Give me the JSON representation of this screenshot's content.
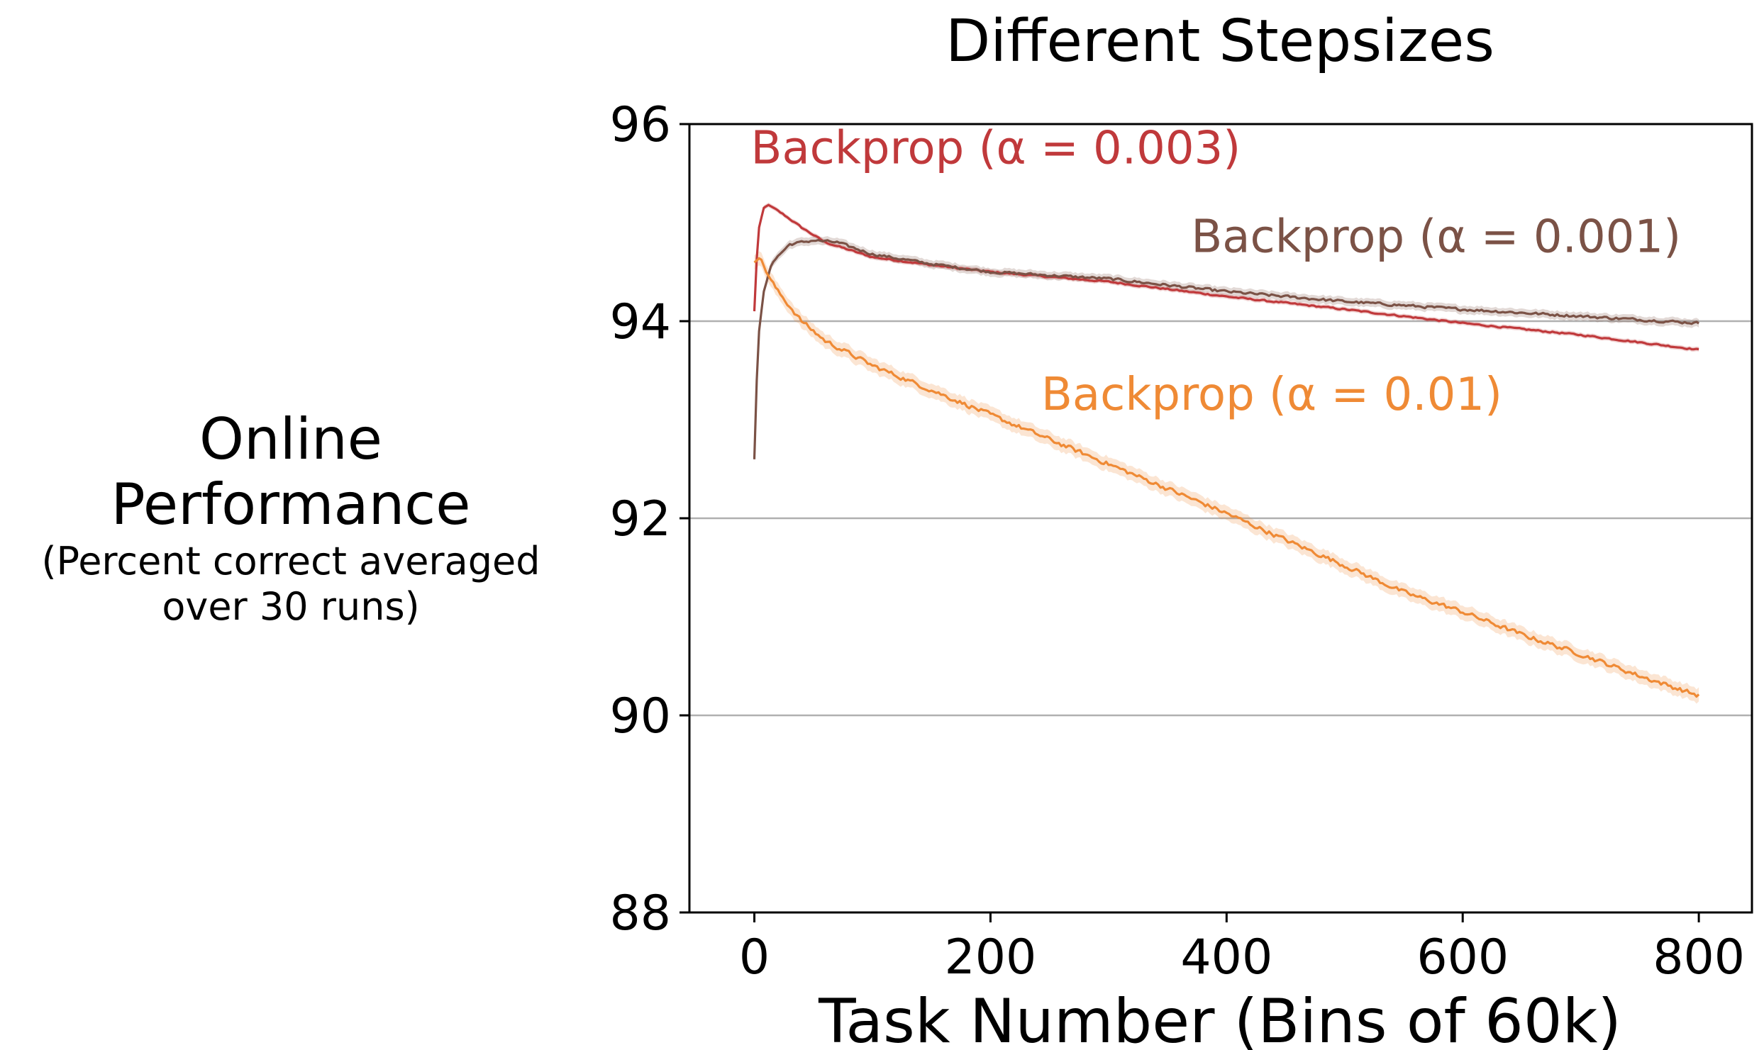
{
  "chart_data": {
    "type": "line",
    "title": "Different Stepsizes",
    "xlabel": "Task Number (Bins of 60k)",
    "ylabel": {
      "line1": "Online",
      "line2": "Performance",
      "line3": "(Percent correct averaged",
      "line4": "over 30 runs)"
    },
    "xlim": [
      -55,
      845
    ],
    "ylim": [
      88,
      96
    ],
    "xticks": [
      0,
      200,
      400,
      600,
      800
    ],
    "yticks": [
      88,
      90,
      92,
      94,
      96
    ],
    "grid_y": [
      90,
      92,
      94
    ],
    "legend": "inline labels",
    "series": [
      {
        "name": "Backprop (α = 0.003)",
        "color": "#c0393b",
        "label_at": [
          -3,
          95.6
        ],
        "noise": 0.02,
        "points": [
          [
            0,
            94.1
          ],
          [
            3,
            94.9
          ],
          [
            8,
            95.15
          ],
          [
            12,
            95.18
          ],
          [
            25,
            95.08
          ],
          [
            40,
            94.95
          ],
          [
            60,
            94.8
          ],
          [
            100,
            94.65
          ],
          [
            150,
            94.57
          ],
          [
            200,
            94.5
          ],
          [
            300,
            94.4
          ],
          [
            400,
            94.25
          ],
          [
            500,
            94.12
          ],
          [
            600,
            93.98
          ],
          [
            700,
            93.86
          ],
          [
            800,
            93.71
          ]
        ]
      },
      {
        "name": "Backprop (α = 0.001)",
        "color": "#7b5246",
        "label_at": [
          370,
          94.7
        ],
        "noise": 0.035,
        "points": [
          [
            0,
            92.6
          ],
          [
            3,
            93.8
          ],
          [
            8,
            94.3
          ],
          [
            15,
            94.6
          ],
          [
            30,
            94.78
          ],
          [
            50,
            94.82
          ],
          [
            70,
            94.8
          ],
          [
            100,
            94.68
          ],
          [
            150,
            94.58
          ],
          [
            200,
            94.5
          ],
          [
            300,
            94.43
          ],
          [
            400,
            94.3
          ],
          [
            500,
            94.2
          ],
          [
            600,
            94.12
          ],
          [
            700,
            94.05
          ],
          [
            800,
            93.98
          ]
        ]
      },
      {
        "name": "Backprop (α = 0.01)",
        "color": "#ef8a35",
        "label_at": [
          243,
          93.1
        ],
        "noise": 0.06,
        "points": [
          [
            0,
            94.6
          ],
          [
            5,
            94.65
          ],
          [
            10,
            94.5
          ],
          [
            20,
            94.3
          ],
          [
            40,
            94.0
          ],
          [
            60,
            93.8
          ],
          [
            100,
            93.55
          ],
          [
            150,
            93.3
          ],
          [
            200,
            93.05
          ],
          [
            250,
            92.8
          ],
          [
            300,
            92.55
          ],
          [
            350,
            92.3
          ],
          [
            400,
            92.05
          ],
          [
            450,
            91.78
          ],
          [
            500,
            91.52
          ],
          [
            550,
            91.25
          ],
          [
            600,
            91.05
          ],
          [
            650,
            90.82
          ],
          [
            700,
            90.62
          ],
          [
            750,
            90.4
          ],
          [
            800,
            90.2
          ]
        ]
      }
    ]
  }
}
